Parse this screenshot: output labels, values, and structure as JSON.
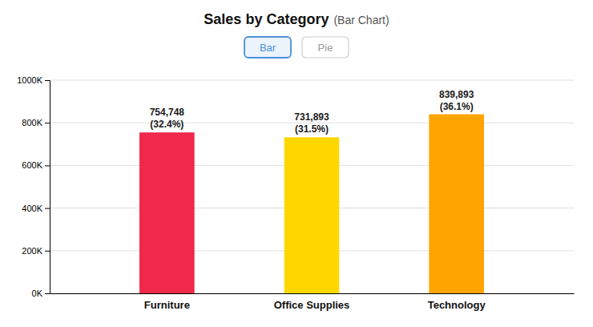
{
  "chart_data": {
    "type": "bar",
    "title": "Sales by Category",
    "subtitle": "(Bar Chart)",
    "annotations": [
      "Bar",
      "Pie"
    ],
    "categories": [
      "Furniture",
      "Office Supplies",
      "Technology"
    ],
    "values": [
      754748,
      731893,
      839893
    ],
    "value_labels": [
      "754,748",
      "731,893",
      "839,893"
    ],
    "percentages": [
      32.4,
      31.5,
      36.1
    ],
    "percentage_labels": [
      "(32.4%)",
      "(31.5%)",
      "(36.1%)"
    ],
    "colors": [
      "#F0284A",
      "#FFD700",
      "#FFA500"
    ],
    "ylim": [
      0,
      1000000
    ],
    "yticks": [
      {
        "value": 0,
        "label": "0K"
      },
      {
        "value": 200000,
        "label": "200K"
      },
      {
        "value": 400000,
        "label": "400K"
      },
      {
        "value": 600000,
        "label": "600K"
      },
      {
        "value": 800000,
        "label": "800K"
      },
      {
        "value": 1000000,
        "label": "1000K"
      }
    ],
    "grid": true,
    "data_labels": true
  }
}
